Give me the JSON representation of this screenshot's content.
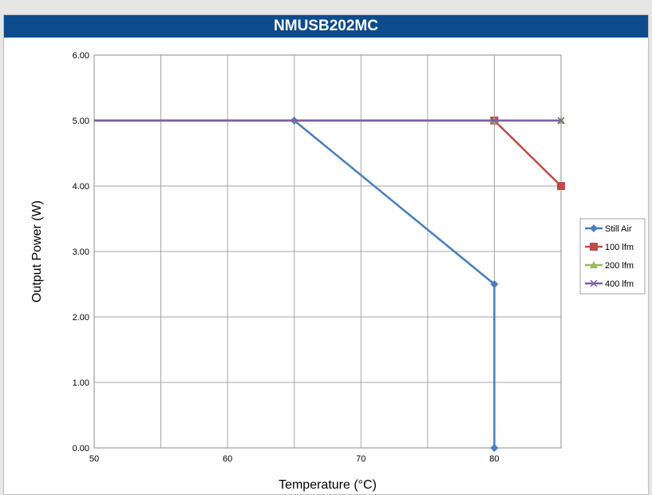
{
  "chart_data": {
    "type": "line",
    "title": "NMUSB202MC",
    "xlabel": "Temperature (°C)",
    "ylabel": "Output Power (W)",
    "xlim": [
      50,
      85
    ],
    "ylim": [
      0,
      6
    ],
    "x_ticks": [
      50,
      60,
      70,
      80
    ],
    "x_tick_labels": [
      "50",
      "60",
      "70",
      "80"
    ],
    "y_ticks": [
      0,
      1,
      2,
      3,
      4,
      5,
      6
    ],
    "y_tick_labels": [
      "0.00",
      "1.00",
      "2.00",
      "3.00",
      "4.00",
      "5.00",
      "6.00"
    ],
    "grid": true,
    "legend_position": "right",
    "series": [
      {
        "name": "Still Air",
        "color": "#4a7ebb",
        "marker": "diamond",
        "points": [
          [
            50,
            5.0
          ],
          [
            65,
            5.0
          ],
          [
            80,
            2.5
          ],
          [
            80,
            0.0
          ]
        ]
      },
      {
        "name": "100 lfm",
        "color": "#be4b48",
        "marker": "square",
        "points": [
          [
            50,
            5.0
          ],
          [
            80,
            5.0
          ],
          [
            85,
            4.0
          ]
        ]
      },
      {
        "name": "200 lfm",
        "color": "#98b954",
        "marker": "triangle",
        "points": [
          [
            50,
            5.0
          ],
          [
            80,
            5.0
          ],
          [
            85,
            5.0
          ]
        ]
      },
      {
        "name": "400 lfm",
        "color": "#7d60a0",
        "marker": "x",
        "points": [
          [
            50,
            5.0
          ],
          [
            80,
            5.0
          ],
          [
            85,
            5.0
          ]
        ]
      }
    ]
  }
}
